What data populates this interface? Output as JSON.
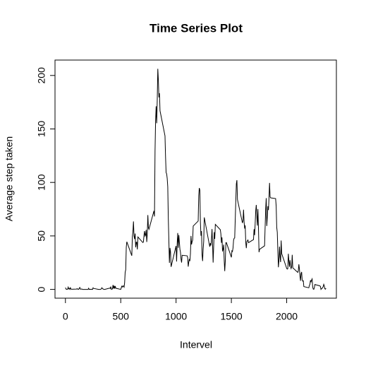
{
  "chart_data": {
    "type": "line",
    "title": "Time Series Plot",
    "x_label": "Intervel",
    "y_label": "Average step taken",
    "color": "#000000",
    "x": [
      0,
      5,
      10,
      15,
      20,
      25,
      30,
      35,
      40,
      45,
      50,
      55,
      100,
      105,
      110,
      115,
      120,
      125,
      130,
      135,
      140,
      145,
      150,
      155,
      200,
      205,
      210,
      215,
      220,
      225,
      230,
      235,
      240,
      245,
      250,
      255,
      300,
      305,
      310,
      315,
      320,
      325,
      330,
      335,
      340,
      345,
      350,
      355,
      400,
      405,
      410,
      415,
      420,
      425,
      430,
      435,
      440,
      445,
      450,
      455,
      500,
      505,
      510,
      515,
      520,
      525,
      530,
      535,
      540,
      545,
      550,
      555,
      600,
      605,
      610,
      615,
      620,
      625,
      630,
      635,
      640,
      645,
      650,
      655,
      700,
      705,
      710,
      715,
      720,
      725,
      730,
      735,
      740,
      745,
      750,
      755,
      800,
      805,
      810,
      815,
      820,
      825,
      830,
      835,
      840,
      845,
      850,
      855,
      900,
      905,
      910,
      915,
      920,
      925,
      930,
      935,
      940,
      945,
      950,
      955,
      1000,
      1005,
      1010,
      1015,
      1020,
      1025,
      1030,
      1035,
      1040,
      1045,
      1050,
      1055,
      1100,
      1105,
      1110,
      1115,
      1120,
      1125,
      1130,
      1135,
      1140,
      1145,
      1150,
      1155,
      1200,
      1205,
      1210,
      1215,
      1220,
      1225,
      1230,
      1235,
      1240,
      1245,
      1250,
      1255,
      1300,
      1305,
      1310,
      1315,
      1320,
      1325,
      1330,
      1335,
      1340,
      1345,
      1350,
      1355,
      1400,
      1405,
      1410,
      1415,
      1420,
      1425,
      1430,
      1435,
      1440,
      1445,
      1450,
      1455,
      1500,
      1505,
      1510,
      1515,
      1520,
      1525,
      1530,
      1535,
      1540,
      1545,
      1550,
      1555,
      1600,
      1605,
      1610,
      1615,
      1620,
      1625,
      1630,
      1635,
      1640,
      1645,
      1650,
      1655,
      1700,
      1705,
      1710,
      1715,
      1720,
      1725,
      1730,
      1735,
      1740,
      1745,
      1750,
      1755,
      1800,
      1805,
      1810,
      1815,
      1820,
      1825,
      1830,
      1835,
      1840,
      1845,
      1850,
      1855,
      1900,
      1905,
      1910,
      1915,
      1920,
      1925,
      1930,
      1935,
      1940,
      1945,
      1950,
      1955,
      2000,
      2005,
      2010,
      2015,
      2020,
      2025,
      2030,
      2035,
      2040,
      2045,
      2050,
      2055,
      2100,
      2105,
      2110,
      2115,
      2120,
      2125,
      2130,
      2135,
      2140,
      2145,
      2150,
      2155,
      2200,
      2205,
      2210,
      2215,
      2220,
      2225,
      2230,
      2235,
      2240,
      2245,
      2250,
      2255,
      2300,
      2305,
      2310,
      2315,
      2320,
      2325,
      2330,
      2335,
      2340,
      2345,
      2350,
      2355
    ],
    "values": [
      1.7,
      0.3,
      0.1,
      0.2,
      0.1,
      2.1,
      0.5,
      0.9,
      0,
      1.5,
      0.3,
      0.1,
      0.3,
      0.7,
      0.2,
      0.3,
      0,
      1.1,
      1.8,
      0.2,
      0.2,
      0.4,
      0.3,
      0,
      0,
      0,
      1.1,
      0,
      0,
      0.1,
      0,
      0.2,
      0,
      0,
      1.5,
      0.9,
      0,
      0,
      0,
      0,
      0.2,
      0.6,
      1.6,
      0.6,
      0.5,
      0.1,
      0,
      0,
      1.2,
      0.9,
      2.6,
      0,
      0.3,
      0.4,
      4.1,
      0.7,
      3.5,
      0.8,
      3.1,
      1.1,
      0,
      1.6,
      3.0,
      2.2,
      3.3,
      3.0,
      2.1,
      6.1,
      16.0,
      18.3,
      39.5,
      44.5,
      31.5,
      49.3,
      53.8,
      63.5,
      50.0,
      47.1,
      52.2,
      39.3,
      44.0,
      44.2,
      37.4,
      49.0,
      43.8,
      44.4,
      50.5,
      54.5,
      49.9,
      51.0,
      55.7,
      44.3,
      52.3,
      69.5,
      57.8,
      56.2,
      73.4,
      68.2,
      129.4,
      157.5,
      171.2,
      155.4,
      177.3,
      206.2,
      195.9,
      179.6,
      183.4,
      167.0,
      143.5,
      124.0,
      109.1,
      108.1,
      103.7,
      95.9,
      66.2,
      45.2,
      24.8,
      38.8,
      35.0,
      21.1,
      40.6,
      26.1,
      42.4,
      52.7,
      38.9,
      50.8,
      44.3,
      37.4,
      34.7,
      28.3,
      25.1,
      31.9,
      31.4,
      29.7,
      21.3,
      25.5,
      28.4,
      26.5,
      33.4,
      50.0,
      42.0,
      44.6,
      46.0,
      59.2,
      63.9,
      87.7,
      94.8,
      92.8,
      63.4,
      50.2,
      54.5,
      32.4,
      26.5,
      37.7,
      45.1,
      67.3,
      42.3,
      39.9,
      43.3,
      41.0,
      46.2,
      56.4,
      42.8,
      25.1,
      40.0,
      53.5,
      47.3,
      60.8,
      55.8,
      52.0,
      43.6,
      48.7,
      35.5,
      37.5,
      41.8,
      27.5,
      17.1,
      26.1,
      43.6,
      43.8,
      30.0,
      36.1,
      35.5,
      38.8,
      46.0,
      47.8,
      48.1,
      65.3,
      82.9,
      98.7,
      102.1,
      84.0,
      62.1,
      64.1,
      74.5,
      63.2,
      56.9,
      59.8,
      43.9,
      38.6,
      44.7,
      45.5,
      46.2,
      43.7,
      46.6,
      56.3,
      50.7,
      61.2,
      73.3,
      79.0,
      68.9,
      59.7,
      75.1,
      56.5,
      34.8,
      37.5,
      40.7,
      58.0,
      74.7,
      85.3,
      59.3,
      67.8,
      77.7,
      74.2,
      85.3,
      99.5,
      86.6,
      85.6,
      84.9,
      77.8,
      58.0,
      53.4,
      36.3,
      20.7,
      27.4,
      40.0,
      30.2,
      25.5,
      45.7,
      33.5,
      19.6,
      19.0,
      19.3,
      33.3,
      26.8,
      21.2,
      27.3,
      21.3,
      19.5,
      21.3,
      32.3,
      20.2,
      15.9,
      17.2,
      23.5,
      19.2,
      12.5,
      8.0,
      14.7,
      16.3,
      8.7,
      7.8,
      8.1,
      2.6,
      1.5,
      3.7,
      4.8,
      8.5,
      7.1,
      8.7,
      9.8,
      2.2,
      0.3,
      0.1,
      1.6,
      4.6,
      3.3,
      2.8,
      0,
      0.8,
      1.0,
      1.6,
      2.6,
      4.7,
      3.3,
      0.6,
      0.2,
      1.1
    ],
    "xlim": [
      -94.2,
      2449.2
    ],
    "ylim": [
      -8.2,
      214.4
    ],
    "xticks": [
      0,
      500,
      1000,
      1500,
      2000
    ],
    "yticks": [
      0,
      50,
      100,
      150,
      200
    ]
  }
}
